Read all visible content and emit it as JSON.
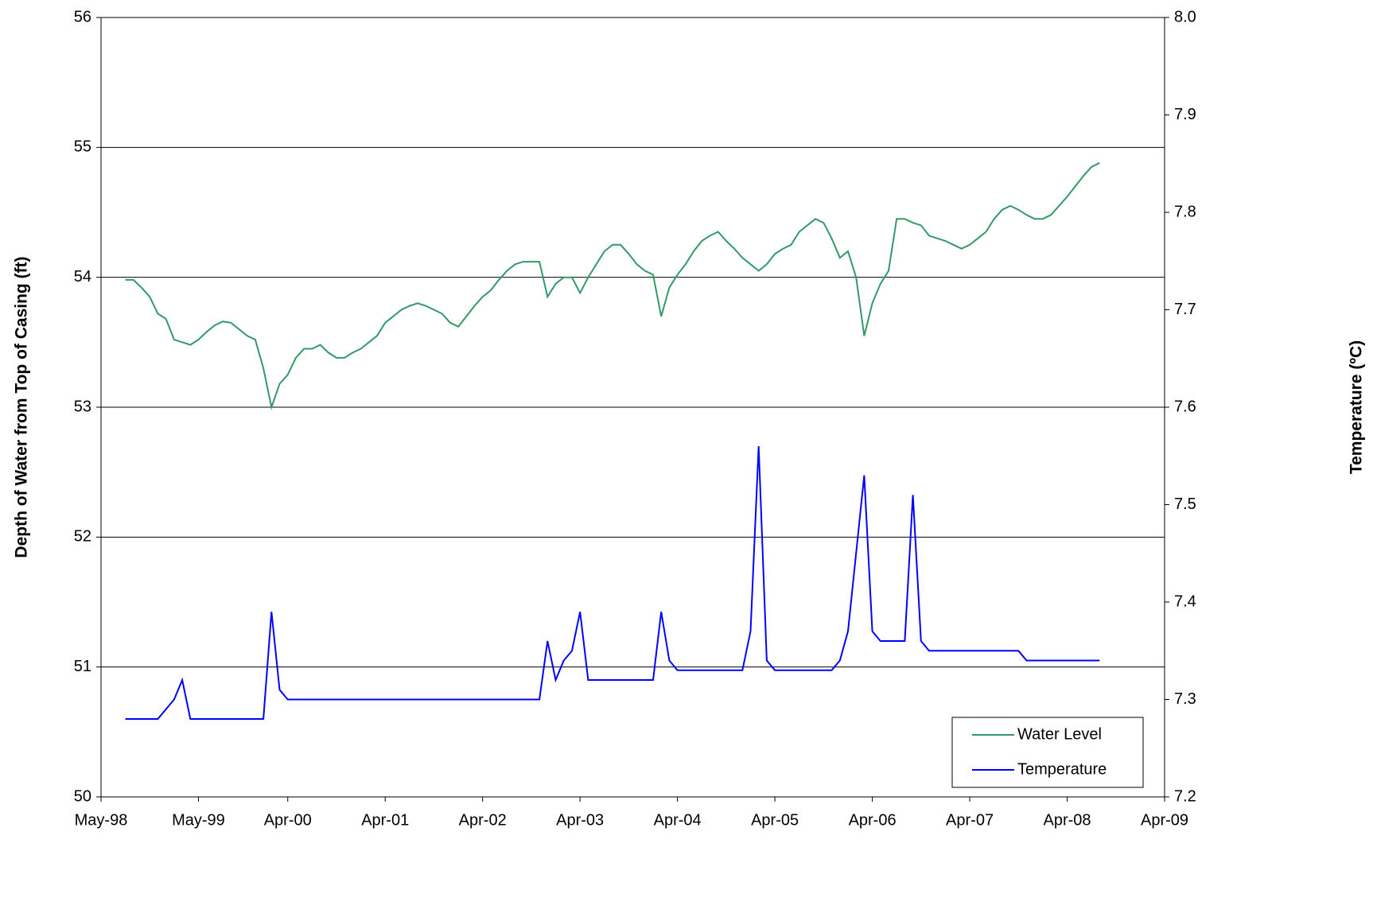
{
  "chart_data": {
    "type": "line",
    "y_label": "Depth of Water from Top of Casing (ft)",
    "y2_label": "Temperature (ºC)",
    "x": [
      "Aug-98",
      "Sep-98",
      "Oct-98",
      "Nov-98",
      "Dec-98",
      "Jan-99",
      "Feb-99",
      "Mar-99",
      "Apr-99",
      "May-99",
      "Jun-99",
      "Jul-99",
      "Aug-99",
      "Sep-99",
      "Oct-99",
      "Nov-99",
      "Dec-99",
      "Jan-00",
      "Feb-00",
      "Mar-00",
      "Apr-00",
      "May-00",
      "Jun-00",
      "Jul-00",
      "Aug-00",
      "Sep-00",
      "Oct-00",
      "Nov-00",
      "Dec-00",
      "Jan-01",
      "Feb-01",
      "Mar-01",
      "Apr-01",
      "May-01",
      "Jun-01",
      "Jul-01",
      "Aug-01",
      "Sep-01",
      "Oct-01",
      "Nov-01",
      "Dec-01",
      "Jan-02",
      "Feb-02",
      "Mar-02",
      "Apr-02",
      "May-02",
      "Jun-02",
      "Jul-02",
      "Aug-02",
      "Sep-02",
      "Oct-02",
      "Nov-02",
      "Dec-02",
      "Jan-03",
      "Feb-03",
      "Mar-03",
      "Apr-03",
      "May-03",
      "Jun-03",
      "Jul-03",
      "Aug-03",
      "Sep-03",
      "Oct-03",
      "Nov-03",
      "Dec-03",
      "Jan-04",
      "Feb-04",
      "Mar-04",
      "Apr-04",
      "May-04",
      "Jun-04",
      "Jul-04",
      "Aug-04",
      "Sep-04",
      "Oct-04",
      "Nov-04",
      "Dec-04",
      "Jan-05",
      "Feb-05",
      "Mar-05",
      "Apr-05",
      "May-05",
      "Jun-05",
      "Jul-05",
      "Aug-05",
      "Sep-05",
      "Oct-05",
      "Nov-05",
      "Dec-05",
      "Jan-06",
      "Feb-06",
      "Mar-06",
      "Apr-06",
      "May-06",
      "Jun-06",
      "Jul-06",
      "Aug-06",
      "Sep-06",
      "Oct-06",
      "Nov-06",
      "Dec-06",
      "Jan-07",
      "Feb-07",
      "Mar-07",
      "Apr-07",
      "May-07",
      "Jun-07",
      "Jul-07",
      "Aug-07",
      "Sep-07",
      "Oct-07",
      "Nov-07",
      "Dec-07",
      "Jan-08",
      "Feb-08",
      "Mar-08",
      "Apr-08",
      "May-08",
      "Jun-08",
      "Jul-08",
      "Aug-08"
    ],
    "series": [
      {
        "name": "Water Level",
        "color": "#339966",
        "values": [
          53.98,
          53.98,
          53.92,
          53.85,
          53.72,
          53.68,
          53.52,
          53.5,
          53.48,
          53.52,
          53.58,
          53.63,
          53.66,
          53.65,
          53.6,
          53.55,
          53.52,
          53.3,
          53.0,
          53.18,
          53.25,
          53.38,
          53.45,
          53.45,
          53.48,
          53.42,
          53.38,
          53.38,
          53.42,
          53.45,
          53.5,
          53.55,
          53.65,
          53.7,
          53.75,
          53.78,
          53.8,
          53.78,
          53.75,
          53.72,
          53.65,
          53.62,
          53.7,
          53.78,
          53.85,
          53.9,
          53.98,
          54.05,
          54.1,
          54.12,
          54.12,
          54.12,
          53.85,
          53.95,
          54.0,
          54.0,
          53.88,
          54.0,
          54.1,
          54.2,
          54.25,
          54.25,
          54.18,
          54.1,
          54.05,
          54.02,
          53.7,
          53.92,
          54.02,
          54.1,
          54.2,
          54.28,
          54.32,
          54.35,
          54.28,
          54.22,
          54.15,
          54.1,
          54.05,
          54.1,
          54.18,
          54.22,
          54.25,
          54.35,
          54.4,
          54.45,
          54.42,
          54.3,
          54.15,
          54.2,
          54.0,
          53.55,
          53.8,
          53.95,
          54.05,
          54.45,
          54.45,
          54.42,
          54.4,
          54.32,
          54.3,
          54.28,
          54.25,
          54.22,
          54.25,
          54.3,
          54.35,
          54.45,
          54.52,
          54.55,
          54.52,
          54.48,
          54.45,
          54.45,
          54.48,
          54.55,
          54.62,
          54.7,
          54.78,
          54.85,
          54.88
        ]
      },
      {
        "name": "Temperature",
        "color": "#0000ff",
        "axis": "y2",
        "values": [
          7.28,
          7.28,
          7.28,
          7.28,
          7.28,
          7.29,
          7.3,
          7.32,
          7.28,
          7.28,
          7.28,
          7.28,
          7.28,
          7.28,
          7.28,
          7.28,
          7.28,
          7.28,
          7.39,
          7.31,
          7.3,
          7.3,
          7.3,
          7.3,
          7.3,
          7.3,
          7.3,
          7.3,
          7.3,
          7.3,
          7.3,
          7.3,
          7.3,
          7.3,
          7.3,
          7.3,
          7.3,
          7.3,
          7.3,
          7.3,
          7.3,
          7.3,
          7.3,
          7.3,
          7.3,
          7.3,
          7.3,
          7.3,
          7.3,
          7.3,
          7.3,
          7.3,
          7.36,
          7.32,
          7.34,
          7.35,
          7.39,
          7.32,
          7.32,
          7.32,
          7.32,
          7.32,
          7.32,
          7.32,
          7.32,
          7.32,
          7.39,
          7.34,
          7.33,
          7.33,
          7.33,
          7.33,
          7.33,
          7.33,
          7.33,
          7.33,
          7.33,
          7.37,
          7.56,
          7.34,
          7.33,
          7.33,
          7.33,
          7.33,
          7.33,
          7.33,
          7.33,
          7.33,
          7.34,
          7.37,
          7.45,
          7.53,
          7.37,
          7.36,
          7.36,
          7.36,
          7.36,
          7.51,
          7.36,
          7.35,
          7.35,
          7.35,
          7.35,
          7.35,
          7.35,
          7.35,
          7.35,
          7.35,
          7.35,
          7.35,
          7.35,
          7.34,
          7.34,
          7.34,
          7.34,
          7.34,
          7.34,
          7.34,
          7.34,
          7.34,
          7.34
        ]
      }
    ],
    "xlim": [
      "May-98",
      "Apr-09"
    ],
    "xticks": [
      "May-98",
      "May-99",
      "Apr-00",
      "Apr-01",
      "Apr-02",
      "Apr-03",
      "Apr-04",
      "Apr-05",
      "Apr-06",
      "Apr-07",
      "Apr-08",
      "Apr-09"
    ],
    "ylim": [
      50,
      56
    ],
    "yticks": [
      50,
      51,
      52,
      53,
      54,
      55,
      56
    ],
    "y2lim": [
      7.2,
      8.0
    ],
    "y2ticks": [
      {
        "value": 7.2,
        "label": "7.2"
      },
      {
        "value": 7.3,
        "label": "7.3"
      },
      {
        "value": 7.4,
        "label": "7.4"
      },
      {
        "value": 7.5,
        "label": "7.5"
      },
      {
        "value": 7.6,
        "label": "7.6"
      },
      {
        "value": 7.7,
        "label": "7.7"
      },
      {
        "value": 7.8,
        "label": "7.8"
      },
      {
        "value": 7.9,
        "label": "7.9"
      },
      {
        "value": 8.0,
        "label": "8.0"
      }
    ],
    "grid": true,
    "legend": "lower right"
  }
}
